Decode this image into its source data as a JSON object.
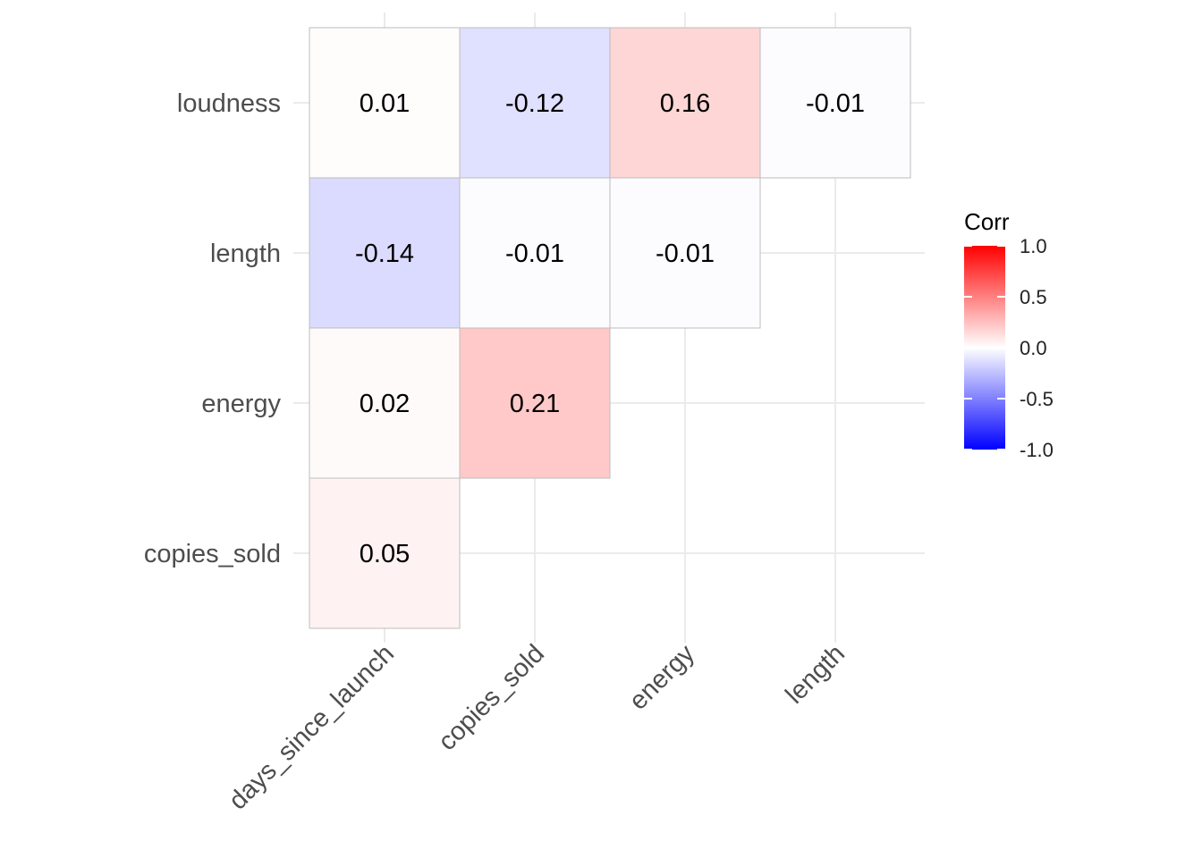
{
  "chart_data": {
    "type": "heatmap",
    "title": "",
    "x_categories": [
      "days_since_launch",
      "copies_sold",
      "energy",
      "length"
    ],
    "y_categories": [
      "copies_sold",
      "energy",
      "length",
      "loudness"
    ],
    "cells": [
      {
        "x": "days_since_launch",
        "y": "loudness",
        "value": 0.01
      },
      {
        "x": "copies_sold",
        "y": "loudness",
        "value": -0.12
      },
      {
        "x": "energy",
        "y": "loudness",
        "value": 0.16
      },
      {
        "x": "length",
        "y": "loudness",
        "value": -0.01
      },
      {
        "x": "days_since_launch",
        "y": "length",
        "value": -0.14
      },
      {
        "x": "copies_sold",
        "y": "length",
        "value": -0.01
      },
      {
        "x": "energy",
        "y": "length",
        "value": -0.01
      },
      {
        "x": "days_since_launch",
        "y": "energy",
        "value": 0.02
      },
      {
        "x": "copies_sold",
        "y": "energy",
        "value": 0.21
      },
      {
        "x": "days_since_launch",
        "y": "copies_sold",
        "value": 0.05
      }
    ],
    "legend": {
      "title": "Corr",
      "limits": [
        -1.0,
        1.0
      ],
      "ticks": [
        1.0,
        0.5,
        0.0,
        -0.5,
        -1.0
      ],
      "tick_labels": [
        "1.0",
        "0.5",
        "0.0",
        "-0.5",
        "-1.0"
      ],
      "colors": {
        "low": "#0000ff",
        "mid": "#ffffff",
        "high": "#ff0000"
      },
      "placement": "right"
    },
    "grid": true
  }
}
